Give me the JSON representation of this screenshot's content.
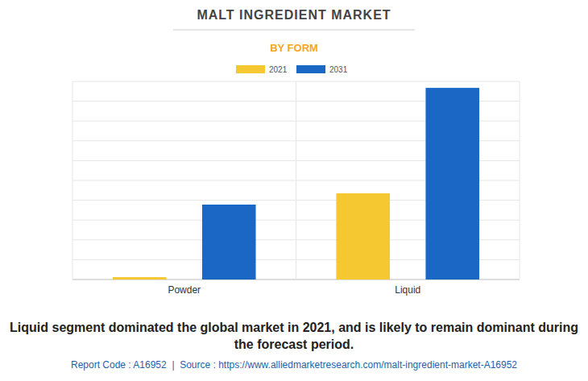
{
  "chart_data": {
    "type": "bar",
    "title": "MALT INGREDIENT MARKET",
    "subtitle": "BY FORM",
    "categories": [
      "Powder",
      "Liquid"
    ],
    "series": [
      {
        "name": "2021",
        "color": "#f5c832",
        "values": [
          0.12,
          4.35
        ]
      },
      {
        "name": "2031",
        "color": "#1a67c6",
        "values": [
          3.78,
          9.67
        ]
      }
    ],
    "ylim": [
      0,
      10
    ],
    "yticks": [
      0,
      1,
      2,
      3,
      4,
      5,
      6,
      7,
      8,
      9,
      10
    ],
    "grid": true,
    "legend": "top",
    "tick_labels": "x",
    "annotations": [
      "Liquid segment dominated the global market in 2021, and is likely to remain dominant during the forecast period.",
      "Report Code : A16952  |  Source : https://www.alliedmarketresearch.com/malt-ingredient-market-A16952"
    ]
  }
}
